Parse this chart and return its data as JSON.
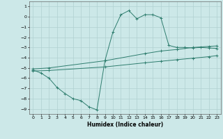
{
  "xlabel": "Humidex (Indice chaleur)",
  "bg_color": "#cce8e8",
  "grid_color": "#b0d0d0",
  "line_color": "#2e7d6e",
  "xlim": [
    -0.5,
    23.5
  ],
  "ylim": [
    -9.5,
    1.5
  ],
  "xticks": [
    0,
    1,
    2,
    3,
    4,
    5,
    6,
    7,
    8,
    9,
    10,
    11,
    12,
    13,
    14,
    15,
    16,
    17,
    18,
    19,
    20,
    21,
    22,
    23
  ],
  "yticks": [
    1,
    0,
    -1,
    -2,
    -3,
    -4,
    -5,
    -6,
    -7,
    -8,
    -9
  ],
  "curve1_x": [
    0,
    1,
    2,
    3,
    4,
    5,
    6,
    7,
    8,
    9,
    10,
    11,
    12,
    13,
    14,
    15,
    16,
    17,
    18,
    19,
    20,
    21,
    22,
    23
  ],
  "curve1_y": [
    -5.2,
    -5.5,
    -6.0,
    -6.9,
    -7.5,
    -8.0,
    -8.2,
    -8.8,
    -9.1,
    -4.3,
    -1.5,
    0.2,
    0.6,
    -0.2,
    0.2,
    0.2,
    -0.1,
    -2.8,
    -3.0,
    -3.0,
    -3.05,
    -3.0,
    -3.05,
    -3.1
  ],
  "curve2_x": [
    0,
    2,
    9,
    14,
    16,
    18,
    20,
    22,
    23
  ],
  "curve2_y": [
    -5.1,
    -5.0,
    -4.3,
    -3.6,
    -3.35,
    -3.2,
    -3.0,
    -2.9,
    -2.85
  ],
  "curve3_x": [
    0,
    2,
    9,
    14,
    16,
    18,
    20,
    22,
    23
  ],
  "curve3_y": [
    -5.3,
    -5.25,
    -4.9,
    -4.5,
    -4.35,
    -4.2,
    -4.05,
    -3.9,
    -3.8
  ]
}
